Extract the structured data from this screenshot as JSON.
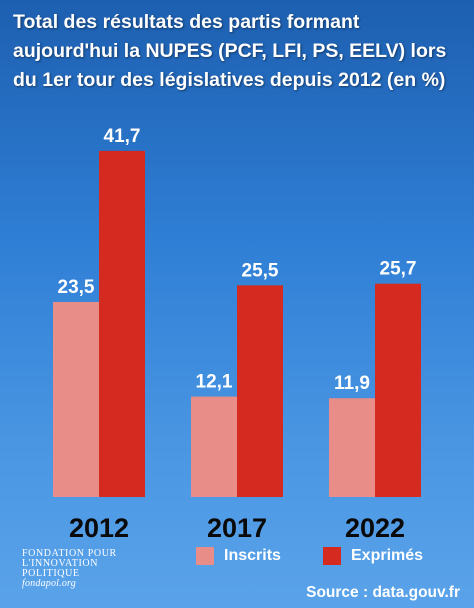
{
  "chart_data": {
    "type": "bar",
    "title": "Total des résultats des partis formant aujourd'hui la NUPES (PCF, LFI, PS, EELV) lors du 1er tour des législatives depuis 2012 (en %)",
    "categories": [
      "2012",
      "2017",
      "2022"
    ],
    "series": [
      {
        "name": "Inscrits",
        "values": [
          23.5,
          12.1,
          11.9
        ],
        "labels": [
          "23,5",
          "12,1",
          "11,9"
        ],
        "color": "#e88d88"
      },
      {
        "name": "Exprimés",
        "values": [
          41.7,
          25.5,
          25.7
        ],
        "labels": [
          "41,7",
          "25,5",
          "25,7"
        ],
        "color": "#d42a20"
      }
    ],
    "ylim": [
      0,
      45
    ],
    "legend": "bottom",
    "grid": false
  },
  "footer": {
    "logo_lines": [
      "FONDATION POUR",
      "L'INNOVATION",
      "POLITIQUE"
    ],
    "logo_url": "fondapol.org",
    "source": "Source : data.gouv.fr"
  }
}
